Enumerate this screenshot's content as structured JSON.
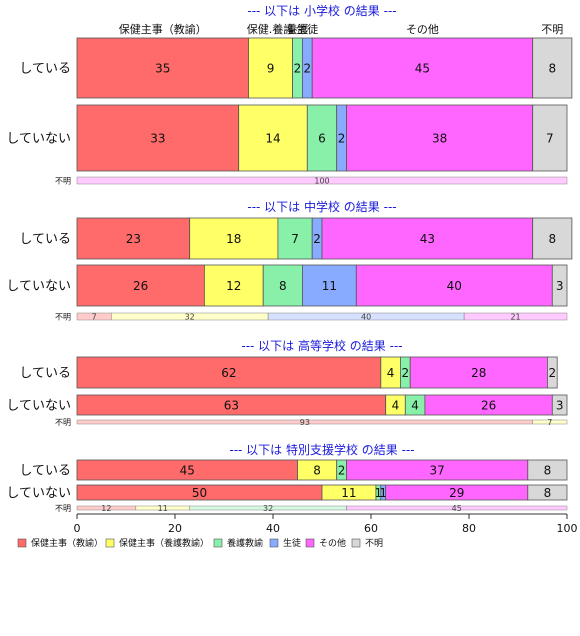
{
  "chart_data": {
    "type": "bar",
    "orientation": "horizontal-stacked-100",
    "categories": [
      "保健主事（教諭）",
      "保健主事（養護教諭）",
      "養護教諭",
      "生徒",
      "その他",
      "不明"
    ],
    "colors": [
      "#ff6b6b",
      "#ffff66",
      "#88f0a8",
      "#88aaff",
      "#ff66ff",
      "#d8d8d8"
    ],
    "xlim": [
      0,
      100
    ],
    "xticks": [
      0,
      20,
      40,
      60,
      80,
      100
    ],
    "top_labels": [
      "保健主事（教諭）",
      "保健.養護",
      "養護",
      "生徒",
      "その他",
      "不明"
    ],
    "panels": [
      {
        "title": "--- 以下は 小学校 の結果 ---",
        "rows": [
          {
            "label": "している",
            "values": [
              35,
              9,
              2,
              2,
              45,
              8
            ]
          },
          {
            "label": "していない",
            "values": [
              33,
              14,
              6,
              2,
              38,
              7
            ]
          }
        ],
        "unknown": {
          "label": "不明",
          "values": [
            0,
            0,
            0,
            0,
            100,
            0
          ],
          "labels": [
            "",
            "",
            "",
            "",
            "100",
            ""
          ]
        }
      },
      {
        "title": "--- 以下は 中学校 の結果 ---",
        "rows": [
          {
            "label": "している",
            "values": [
              23,
              18,
              7,
              2,
              43,
              8
            ]
          },
          {
            "label": "していない",
            "values": [
              26,
              12,
              8,
              11,
              40,
              3
            ]
          }
        ],
        "unknown": {
          "label": "不明",
          "values": [
            7,
            32,
            0,
            40,
            21,
            0
          ],
          "labels": [
            "7",
            "32",
            "",
            "40",
            "21",
            ""
          ]
        }
      },
      {
        "title": "--- 以下は 高等学校 の結果 ---",
        "rows": [
          {
            "label": "している",
            "values": [
              62,
              4,
              2,
              0,
              28,
              2
            ]
          },
          {
            "label": "していない",
            "values": [
              63,
              4,
              4,
              0,
              26,
              3
            ]
          }
        ],
        "unknown": {
          "label": "不明",
          "values": [
            93,
            7,
            0,
            0,
            0,
            0
          ],
          "labels": [
            "93",
            "7",
            "",
            "",
            "",
            ""
          ]
        }
      },
      {
        "title": "--- 以下は 特別支援学校 の結果 ---",
        "rows": [
          {
            "label": "している",
            "values": [
              45,
              8,
              2,
              0,
              37,
              8
            ]
          },
          {
            "label": "していない",
            "values": [
              50,
              11,
              1,
              1,
              29,
              8
            ]
          }
        ],
        "unknown": {
          "label": "不明",
          "values": [
            12,
            11,
            32,
            0,
            45,
            0
          ],
          "labels": [
            "12",
            "11",
            "32",
            "",
            "45",
            ""
          ]
        }
      }
    ]
  }
}
